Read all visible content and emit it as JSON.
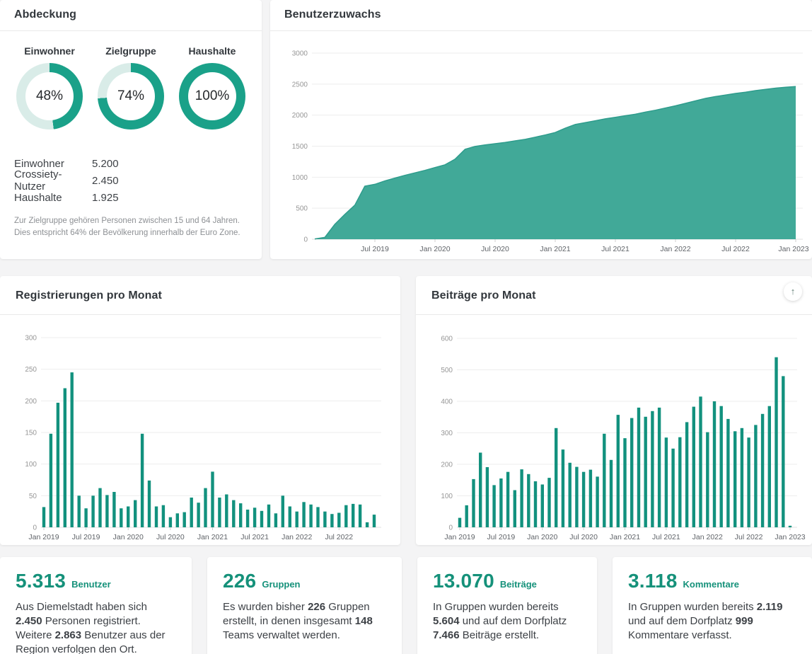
{
  "colors": {
    "ring": "#1aa189",
    "track": "#d9ece8",
    "bar": "#12917e",
    "area_fill": "#41a998",
    "area_stroke": "#2e9c8c",
    "grid": "#ededed",
    "zero_line": "#e0e0e0",
    "tick_mark": "#cfcfcf"
  },
  "coverage_card": {
    "title": "Abdeckung",
    "gauges": [
      {
        "label": "Einwohner",
        "pct": 48,
        "display": "48%"
      },
      {
        "label": "Zielgruppe",
        "pct": 74,
        "display": "74%"
      },
      {
        "label": "Haushalte",
        "pct": 100,
        "display": "100%"
      }
    ],
    "stats": [
      {
        "label": "Einwohner",
        "value": "5.200"
      },
      {
        "label": "Crossiety-Nutzer",
        "value": "2.450"
      },
      {
        "label": "Haushalte",
        "value": "1.925"
      }
    ],
    "footnote": "Zur Zielgruppe gehören Personen zwischen 15 und 64 Jahren. Dies entspricht 64% der Bevölkerung innerhalb der Euro Zone."
  },
  "posts_card": {
    "scroll_top_icon": "↑"
  },
  "chart_data": [
    {
      "id": "benutzerzuwachs",
      "type": "area",
      "title": "Benutzerzuwachs",
      "start_month": "Jan 2019",
      "y_ticks": [
        0,
        500,
        1000,
        1500,
        2000,
        2500,
        3000
      ],
      "ylim": [
        0,
        3000
      ],
      "grid": true,
      "x_tick_labels": [
        "Jul 2019",
        "Jan 2020",
        "Jul 2020",
        "Jan 2021",
        "Jul 2021",
        "Jan 2022",
        "Jul 2022",
        "Jan 2023"
      ],
      "first_tick_index": 6,
      "tick_every": 6,
      "values": [
        5,
        30,
        240,
        400,
        550,
        855,
        885,
        940,
        985,
        1030,
        1070,
        1110,
        1155,
        1200,
        1290,
        1450,
        1495,
        1520,
        1540,
        1560,
        1585,
        1610,
        1645,
        1680,
        1720,
        1790,
        1850,
        1880,
        1910,
        1940,
        1965,
        1990,
        2015,
        2050,
        2080,
        2115,
        2150,
        2190,
        2230,
        2270,
        2300,
        2325,
        2350,
        2370,
        2395,
        2415,
        2435,
        2450,
        2460
      ]
    },
    {
      "id": "registrierungen",
      "type": "bar",
      "title": "Registrierungen pro Monat",
      "start_month": "Jan 2019",
      "y_ticks": [
        0,
        50,
        100,
        150,
        200,
        250,
        300
      ],
      "ylim": [
        0,
        300
      ],
      "grid": true,
      "x_tick_labels": [
        "Jan 2019",
        "Jul 2019",
        "Jan 2020",
        "Jul 2020",
        "Jan 2021",
        "Jul 2021",
        "Jan 2022",
        "Jul 2022"
      ],
      "first_tick_index": 0,
      "tick_every": 6,
      "values": [
        32,
        148,
        197,
        220,
        245,
        50,
        30,
        50,
        62,
        51,
        56,
        30,
        33,
        43,
        148,
        74,
        33,
        35,
        16,
        22,
        24,
        47,
        39,
        62,
        88,
        47,
        52,
        43,
        38,
        28,
        31,
        26,
        36,
        22,
        50,
        33,
        25,
        40,
        36,
        32,
        25,
        21,
        23,
        35,
        37,
        36,
        8,
        20
      ]
    },
    {
      "id": "beitraege",
      "type": "bar",
      "title": "Beiträge pro Monat",
      "start_month": "Jan 2019",
      "y_ticks": [
        0,
        100,
        200,
        300,
        400,
        500,
        600
      ],
      "ylim": [
        0,
        600
      ],
      "grid": true,
      "x_tick_labels": [
        "Jan 2019",
        "Jul 2019",
        "Jan 2020",
        "Jul 2020",
        "Jan 2021",
        "Jul 2021",
        "Jan 2022",
        "Jul 2022",
        "Jan 2023"
      ],
      "first_tick_index": 0,
      "tick_every": 6,
      "values": [
        30,
        70,
        153,
        237,
        191,
        134,
        155,
        176,
        118,
        184,
        169,
        146,
        136,
        157,
        315,
        247,
        205,
        192,
        176,
        183,
        161,
        297,
        214,
        357,
        283,
        347,
        380,
        351,
        369,
        380,
        285,
        250,
        286,
        334,
        383,
        415,
        302,
        400,
        385,
        344,
        305,
        315,
        285,
        325,
        360,
        385,
        540,
        480,
        5
      ]
    }
  ],
  "summary_cards": [
    {
      "value": "5.313",
      "label": "Benutzer",
      "text": [
        [
          "Aus Diemelstadt haben sich "
        ],
        [
          "2.450",
          1
        ],
        [
          " Personen registriert. Weitere "
        ],
        [
          "2.863",
          1
        ],
        [
          " Benutzer aus der Region verfolgen den Ort."
        ]
      ]
    },
    {
      "value": "226",
      "label": "Gruppen",
      "text": [
        [
          "Es wurden bisher "
        ],
        [
          "226",
          1
        ],
        [
          " Gruppen erstellt, in denen insgesamt "
        ],
        [
          "148",
          1
        ],
        [
          " Teams verwaltet werden."
        ]
      ]
    },
    {
      "value": "13.070",
      "label": "Beiträge",
      "text": [
        [
          "In Gruppen wurden bereits "
        ],
        [
          "5.604",
          1
        ],
        [
          " und auf dem Dorfplatz "
        ],
        [
          "7.466",
          1
        ],
        [
          " Beiträge erstellt."
        ]
      ]
    },
    {
      "value": "3.118",
      "label": "Kommentare",
      "text": [
        [
          "In Gruppen wurden bereits "
        ],
        [
          "2.119",
          1
        ],
        [
          " und auf dem Dorfplatz "
        ],
        [
          "999",
          1
        ],
        [
          " Kommentare verfasst."
        ]
      ]
    }
  ]
}
